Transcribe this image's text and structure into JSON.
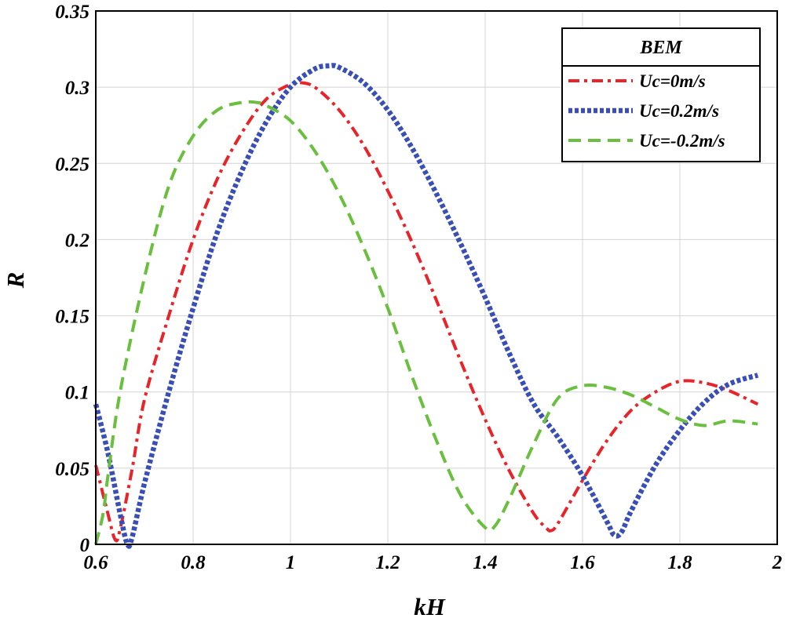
{
  "chart_data": {
    "type": "line",
    "xlabel": "kH",
    "ylabel": "R",
    "xlim": [
      0.6,
      2.0
    ],
    "ylim": [
      0,
      0.35
    ],
    "xticks": [
      0.6,
      0.8,
      1.0,
      1.2,
      1.4,
      1.6,
      1.8,
      2.0
    ],
    "xtick_labels": [
      "0.6",
      "0.8",
      "1",
      "1.2",
      "1.4",
      "1.6",
      "1.8",
      "2"
    ],
    "yticks": [
      0,
      0.05,
      0.1,
      0.15,
      0.2,
      0.25,
      0.3,
      0.35
    ],
    "ytick_labels": [
      "0",
      "0.05",
      "0.1",
      "0.15",
      "0.2",
      "0.25",
      "0.3",
      "0.35"
    ],
    "grid": true,
    "legend": {
      "title": "BEM",
      "position": "top-right"
    },
    "series": [
      {
        "name": "Uc=0m/s",
        "color": "#e8242b",
        "style": "dashdot",
        "x": [
          0.6,
          0.625,
          0.64,
          0.65,
          0.675,
          0.7,
          0.75,
          0.8,
          0.85,
          0.9,
          0.95,
          1.0,
          1.02,
          1.05,
          1.1,
          1.15,
          1.2,
          1.25,
          1.3,
          1.35,
          1.4,
          1.45,
          1.5,
          1.525,
          1.535,
          1.55,
          1.6,
          1.65,
          1.7,
          1.75,
          1.8,
          1.85,
          1.9,
          1.96
        ],
        "y": [
          0.052,
          0.02,
          0.003,
          0.01,
          0.05,
          0.095,
          0.15,
          0.2,
          0.24,
          0.27,
          0.292,
          0.302,
          0.303,
          0.3,
          0.285,
          0.262,
          0.232,
          0.198,
          0.16,
          0.12,
          0.082,
          0.048,
          0.02,
          0.011,
          0.009,
          0.014,
          0.042,
          0.068,
          0.088,
          0.1,
          0.107,
          0.106,
          0.101,
          0.092
        ]
      },
      {
        "name": "Uc=0.2m/s",
        "color": "#3a4fb5",
        "style": "dotted",
        "x": [
          0.6,
          0.625,
          0.65,
          0.665,
          0.675,
          0.7,
          0.75,
          0.8,
          0.85,
          0.9,
          0.95,
          1.0,
          1.05,
          1.08,
          1.1,
          1.15,
          1.2,
          1.25,
          1.3,
          1.35,
          1.4,
          1.45,
          1.5,
          1.55,
          1.6,
          1.65,
          1.665,
          1.68,
          1.7,
          1.75,
          1.8,
          1.85,
          1.9,
          1.96
        ],
        "y": [
          0.092,
          0.06,
          0.02,
          0.0,
          0.005,
          0.04,
          0.1,
          0.155,
          0.205,
          0.245,
          0.277,
          0.3,
          0.312,
          0.314,
          0.313,
          0.303,
          0.285,
          0.26,
          0.23,
          0.197,
          0.162,
          0.125,
          0.092,
          0.07,
          0.045,
          0.015,
          0.006,
          0.008,
          0.022,
          0.052,
          0.075,
          0.093,
          0.105,
          0.111
        ]
      },
      {
        "name": "Uc=-0.2m/s",
        "color": "#6abf3e",
        "style": "dashed",
        "x": [
          0.6,
          0.615,
          0.625,
          0.65,
          0.7,
          0.75,
          0.8,
          0.85,
          0.9,
          0.93,
          0.95,
          1.0,
          1.05,
          1.1,
          1.15,
          1.2,
          1.25,
          1.3,
          1.35,
          1.4,
          1.42,
          1.45,
          1.5,
          1.55,
          1.6,
          1.65,
          1.7,
          1.75,
          1.8,
          1.85,
          1.9,
          1.96
        ],
        "y": [
          0.0,
          0.02,
          0.045,
          0.1,
          0.175,
          0.235,
          0.268,
          0.285,
          0.29,
          0.29,
          0.288,
          0.278,
          0.258,
          0.23,
          0.195,
          0.155,
          0.11,
          0.068,
          0.032,
          0.011,
          0.012,
          0.03,
          0.066,
          0.096,
          0.104,
          0.103,
          0.098,
          0.09,
          0.082,
          0.078,
          0.081,
          0.079
        ]
      }
    ]
  }
}
